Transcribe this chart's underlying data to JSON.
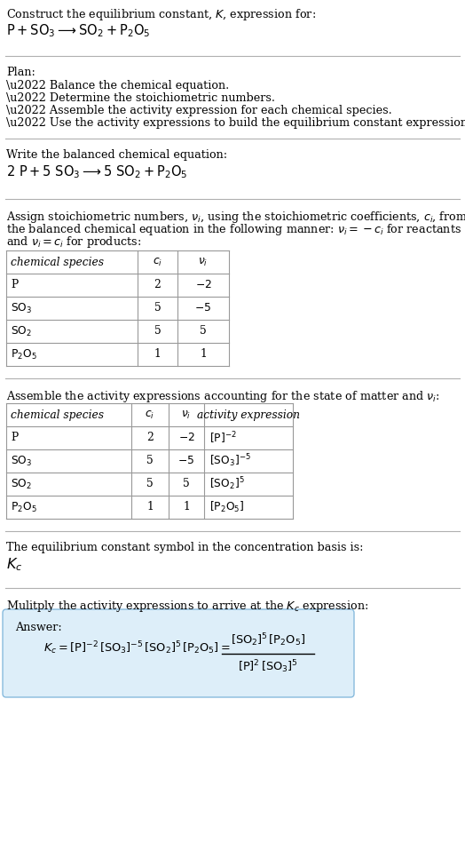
{
  "bg_color": "#ffffff",
  "text_color": "#000000",
  "title_line1": "Construct the equilibrium constant, $K$, expression for:",
  "title_line2": "$\\mathrm{P + SO_3 \\longrightarrow SO_2 + P_2O_5}$",
  "plan_header": "Plan:",
  "plan_items": [
    "\\u2022 Balance the chemical equation.",
    "\\u2022 Determine the stoichiometric numbers.",
    "\\u2022 Assemble the activity expression for each chemical species.",
    "\\u2022 Use the activity expressions to build the equilibrium constant expression."
  ],
  "balanced_header": "Write the balanced chemical equation:",
  "balanced_eq": "$\\mathrm{2\\ P + 5\\ SO_3 \\longrightarrow 5\\ SO_2 + P_2O_5}$",
  "stoich_lines": [
    "Assign stoichiometric numbers, $\\nu_i$, using the stoichiometric coefficients, $c_i$, from",
    "the balanced chemical equation in the following manner: $\\nu_i = -c_i$ for reactants",
    "and $\\nu_i = c_i$ for products:"
  ],
  "table1_cols": [
    "chemical species",
    "$c_i$",
    "$\\nu_i$"
  ],
  "table1_rows": [
    [
      "P",
      "2",
      "$-2$"
    ],
    [
      "$\\mathrm{SO_3}$",
      "5",
      "$-5$"
    ],
    [
      "$\\mathrm{SO_2}$",
      "5",
      "5"
    ],
    [
      "$\\mathrm{P_2O_5}$",
      "1",
      "1"
    ]
  ],
  "activity_header": "Assemble the activity expressions accounting for the state of matter and $\\nu_i$:",
  "table2_cols": [
    "chemical species",
    "$c_i$",
    "$\\nu_i$",
    "activity expression"
  ],
  "table2_rows": [
    [
      "P",
      "2",
      "$-2$",
      "$[\\mathrm{P}]^{-2}$"
    ],
    [
      "$\\mathrm{SO_3}$",
      "5",
      "$-5$",
      "$[\\mathrm{SO_3}]^{-5}$"
    ],
    [
      "$\\mathrm{SO_2}$",
      "5",
      "5",
      "$[\\mathrm{SO_2}]^5$"
    ],
    [
      "$\\mathrm{P_2O_5}$",
      "1",
      "1",
      "$[\\mathrm{P_2O_5}]$"
    ]
  ],
  "kc_header": "The equilibrium constant symbol in the concentration basis is:",
  "kc_symbol": "$K_c$",
  "multiply_header": "Mulitply the activity expressions to arrive at the $K_c$ expression:",
  "answer_box_color": "#ddeef9",
  "answer_box_edge": "#88bbdd",
  "answer_label": "Answer:",
  "kc_left": "$K_c = [\\mathrm{P}]^{-2}\\,[\\mathrm{SO_3}]^{-5}\\,[\\mathrm{SO_2}]^5\\,[\\mathrm{P_2O_5}] =$",
  "frac_num": "$[\\mathrm{SO_2}]^5\\,[\\mathrm{P_2O_5}]$",
  "frac_den": "$[\\mathrm{P}]^2\\,[\\mathrm{SO_3}]^5$"
}
